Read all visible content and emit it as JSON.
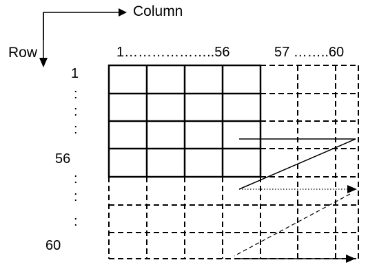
{
  "axis_labels": {
    "column": "Column",
    "row": "Row"
  },
  "column_header": {
    "main_range": "1………………..56",
    "extra_range": "57 ……..60"
  },
  "row_header": {
    "first": "1",
    "mid": "56",
    "last": "60",
    "ellipsis_dot": ":"
  },
  "grid": {
    "solid_block_rows": 4,
    "solid_block_cols": 4,
    "total_rows": 7,
    "total_cols": 7
  },
  "colors": {
    "line": "#000000",
    "background": "#ffffff"
  }
}
